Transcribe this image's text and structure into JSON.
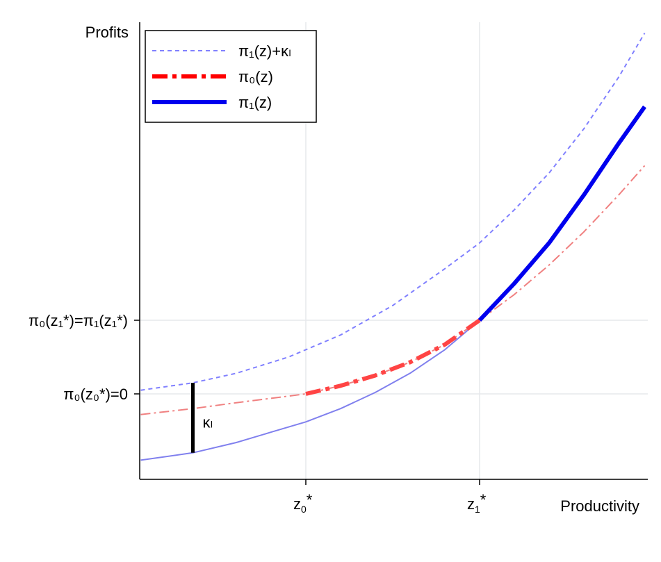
{
  "chart_data": {
    "type": "line",
    "title": "",
    "xlabel": "Productivity",
    "ylabel": "Profits",
    "x_ticks": [
      {
        "x": 1.0,
        "label": "z",
        "sub": "0",
        "sup": "*"
      },
      {
        "x": 2.0,
        "label": "z",
        "sub": "1",
        "sup": "*"
      }
    ],
    "y_ticks": [
      {
        "y": 0,
        "label": "π₀(z₀*)=0"
      },
      {
        "y": 1.0,
        "label": "π₀(z₁*)=π₁(z₁*)"
      }
    ],
    "xlim": [
      0.0,
      2.9
    ],
    "ylim": [
      -1.0,
      5.5
    ],
    "grid": true,
    "legend": {
      "position": "top-left",
      "entries": [
        {
          "label": "π₁(z)+κₗ",
          "series": "pi1_plus_kappa"
        },
        {
          "label": "π₀(z)",
          "series": "pi0_bold"
        },
        {
          "label": "π₁(z)",
          "series": "pi1_bold"
        }
      ]
    },
    "series": [
      {
        "id": "pi1_plus_kappa",
        "color": "#8080ff",
        "dash": "short",
        "x": [
          0.05,
          0.35,
          0.6,
          0.9,
          1.2,
          1.5,
          1.8,
          2.0,
          2.2,
          2.4,
          2.6,
          2.8,
          2.95
        ],
        "y": [
          0.05,
          0.15,
          0.28,
          0.5,
          0.8,
          1.2,
          1.7,
          2.05,
          2.5,
          3.0,
          3.6,
          4.3,
          4.9
        ]
      },
      {
        "id": "pi0_thin",
        "color": "#f08080",
        "dash": "dashdot",
        "x": [
          0.05,
          0.35,
          0.6,
          0.8,
          1.0,
          1.2,
          1.4,
          1.6,
          1.8,
          2.0,
          2.2,
          2.4,
          2.6,
          2.8,
          2.95
        ],
        "y": [
          -0.28,
          -0.2,
          -0.12,
          -0.06,
          0.0,
          0.11,
          0.25,
          0.43,
          0.67,
          1.0,
          1.35,
          1.75,
          2.2,
          2.7,
          3.1
        ]
      },
      {
        "id": "pi1_thin",
        "color": "#8080ee",
        "dash": "solid",
        "x": [
          0.05,
          0.35,
          0.6,
          0.8,
          1.0,
          1.2,
          1.4,
          1.6,
          1.8,
          2.0
        ],
        "y": [
          -0.9,
          -0.8,
          -0.66,
          -0.52,
          -0.38,
          -0.2,
          0.02,
          0.28,
          0.6,
          1.0
        ]
      },
      {
        "id": "pi0_bold",
        "color": "#ff4444",
        "dash": "dashdot",
        "x": [
          1.0,
          1.2,
          1.4,
          1.6,
          1.8,
          2.0
        ],
        "y": [
          0.0,
          0.11,
          0.25,
          0.43,
          0.67,
          1.0
        ]
      },
      {
        "id": "pi1_bold",
        "color": "#0000ee",
        "dash": "solid",
        "x": [
          2.0,
          2.2,
          2.4,
          2.6,
          2.8,
          2.95
        ],
        "y": [
          1.0,
          1.5,
          2.05,
          2.7,
          3.4,
          3.9
        ]
      }
    ],
    "annotations": [
      {
        "type": "vbar",
        "x": 0.35,
        "y0": -0.8,
        "y1": 0.15,
        "color": "#000000",
        "label": "κₗ"
      }
    ]
  }
}
